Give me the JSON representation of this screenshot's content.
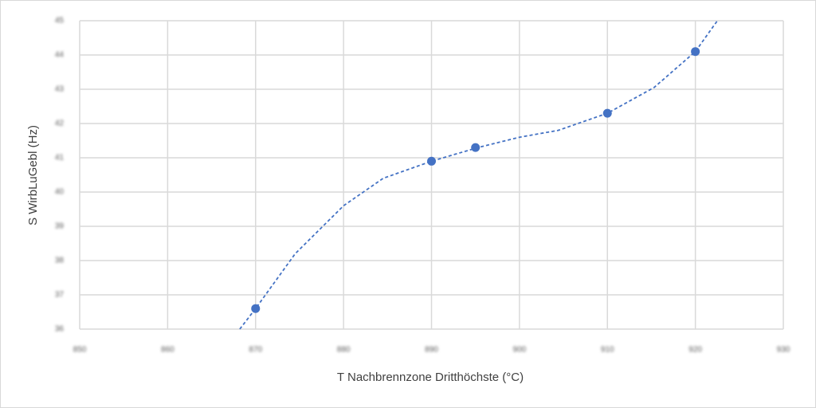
{
  "chart_data": {
    "type": "scatter",
    "x_label": "T Nachbrennzone Dritthöchste (°C)",
    "y_label": "S WirbLuGebl (Hz)",
    "x": [
      870,
      890,
      895,
      910,
      920
    ],
    "values": [
      36.6,
      40.9,
      41.3,
      42.3,
      44.1
    ],
    "color": "#4472c4",
    "trendline": {
      "x": [
        868.2,
        870,
        874.5,
        880,
        884.5,
        890,
        895.3,
        900,
        904.4,
        910,
        915.3,
        920,
        922.5
      ],
      "values": [
        36,
        36.6,
        38.2,
        39.6,
        40.4,
        40.9,
        41.3,
        41.6,
        41.8,
        42.3,
        43.05,
        44.1,
        45
      ],
      "color": "#4472c4",
      "dashed": true
    },
    "xlim": [
      850,
      930
    ],
    "xticks": [
      850,
      860,
      870,
      880,
      890,
      900,
      910,
      920,
      930
    ],
    "ylim": [
      36,
      45
    ],
    "yticks": [
      36,
      37,
      38,
      39,
      40,
      41,
      42,
      43,
      44,
      45
    ],
    "grid": true
  }
}
